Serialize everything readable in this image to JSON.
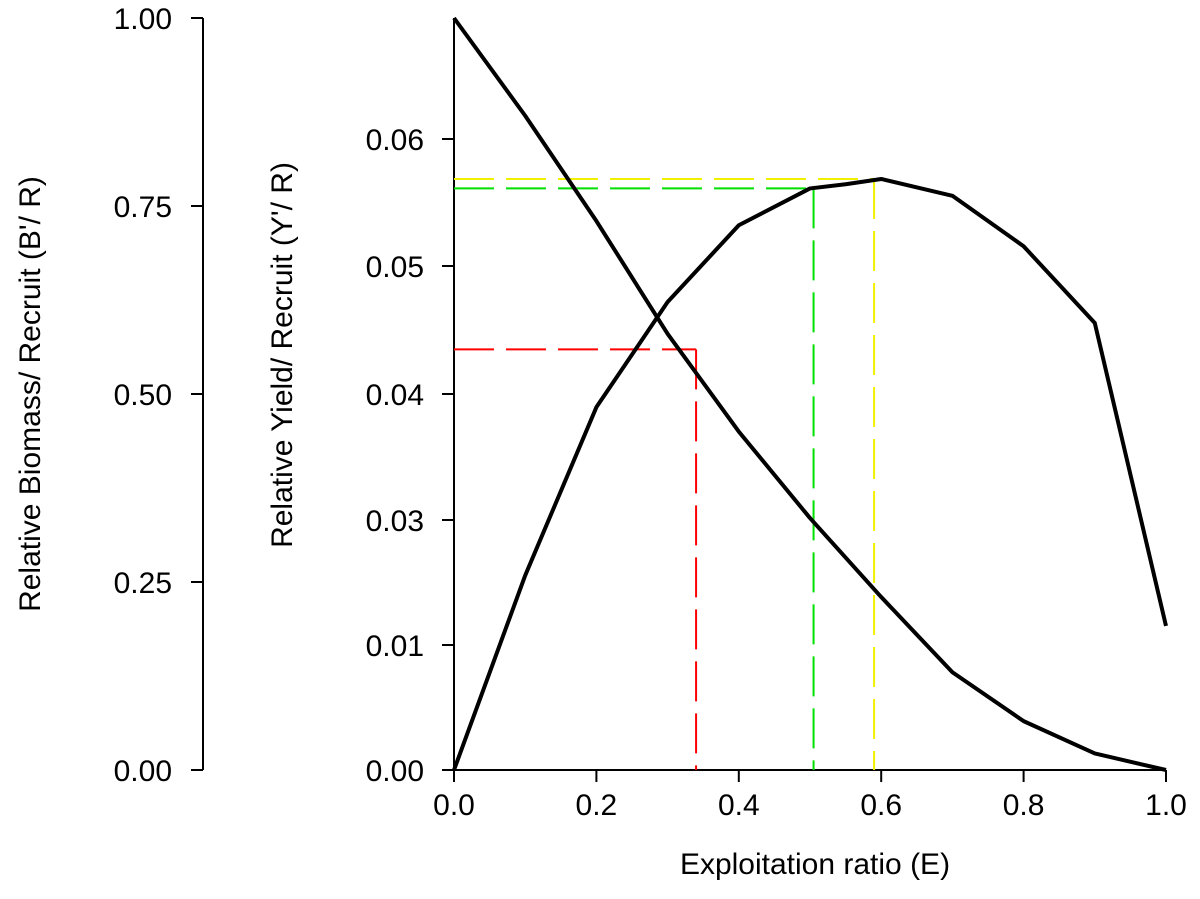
{
  "chart_data": {
    "type": "line",
    "x_axis": {
      "label": "Exploitation ratio (E)",
      "range": [
        0,
        1
      ],
      "ticks": [
        "0.0",
        "0.2",
        "0.4",
        "0.6",
        "0.8",
        "1.0"
      ]
    },
    "y_axis_outer": {
      "label": "Relative Biomass/ Recruit (B'/ R)",
      "range": [
        0,
        1
      ],
      "ticks": [
        "0.00",
        "0.25",
        "0.50",
        "0.75",
        "1.00"
      ],
      "highlight_tick": "0.50",
      "highlight_color": "#ff0000"
    },
    "y_axis_inner": {
      "label": "Relative Yield/ Recruit (Y'/ R)",
      "range": [
        0,
        0.07
      ],
      "ticks": [
        "0.00",
        "0.01",
        "0.03",
        "0.04",
        "0.05",
        "0.06"
      ]
    },
    "series": [
      {
        "axis": "outer",
        "color": "#000000",
        "x": [
          0,
          0.1,
          0.2,
          0.3,
          0.4,
          0.5,
          0.6,
          0.7,
          0.8,
          0.9,
          1.0
        ],
        "y": [
          1.0,
          0.87,
          0.73,
          0.58,
          0.45,
          0.335,
          0.23,
          0.13,
          0.065,
          0.022,
          0.0
        ]
      },
      {
        "axis": "inner",
        "color": "#000000",
        "x": [
          0,
          0.1,
          0.2,
          0.3,
          0.4,
          0.5,
          0.55,
          0.6,
          0.7,
          0.8,
          0.9,
          1.0
        ],
        "y": [
          0.0,
          0.0185,
          0.0345,
          0.0445,
          0.0518,
          0.0553,
          0.0557,
          0.0562,
          0.0546,
          0.0498,
          0.0425,
          0.0137
        ]
      }
    ],
    "reference_lines": [
      {
        "color": "#ff0000",
        "x": 0.34,
        "y": 0.04,
        "axis": "inner"
      },
      {
        "color": "#00e000",
        "x": 0.505,
        "y": 0.0553,
        "axis": "inner"
      },
      {
        "color": "#f0f000",
        "x": 0.59,
        "y": 0.0562,
        "axis": "inner"
      }
    ],
    "grid": false
  }
}
